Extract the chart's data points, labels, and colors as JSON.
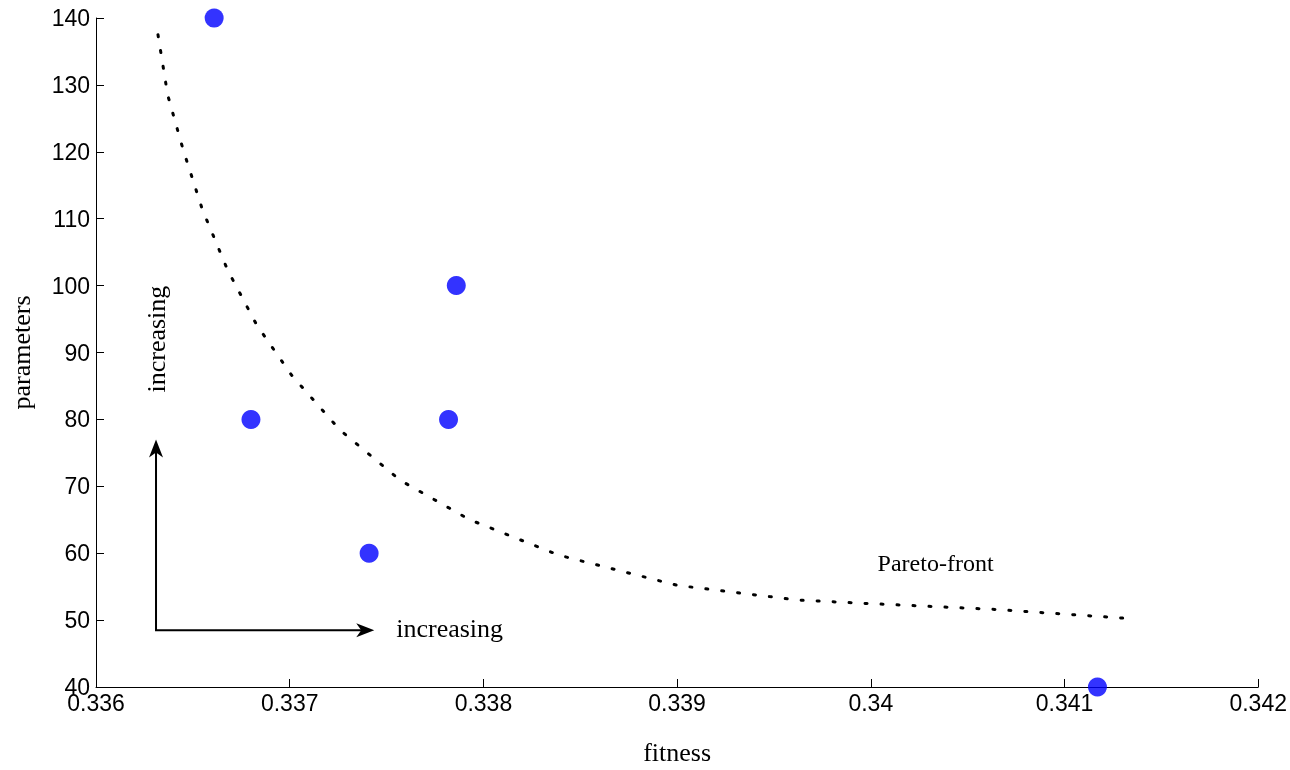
{
  "chart_data": {
    "type": "scatter",
    "xlabel": "fitness",
    "ylabel": "parameters",
    "xlim": [
      0.336,
      0.342
    ],
    "xticks": [
      0.336,
      0.337,
      0.338,
      0.339,
      0.34,
      0.341,
      0.342
    ],
    "ylim": [
      40,
      140
    ],
    "yticks": [
      40,
      50,
      60,
      70,
      80,
      90,
      100,
      110,
      120,
      130,
      140
    ],
    "grid": false,
    "series": [
      {
        "color": "#0000ff",
        "marker": "circle",
        "x": [
          0.33661,
          0.3368,
          0.33741,
          0.33782,
          0.33786,
          0.34117
        ],
        "values": [
          140,
          80,
          60,
          80,
          100,
          40
        ]
      },
      {
        "type": "line",
        "color": "#000000",
        "marker": "none",
        "line_style": "dotted",
        "x": [
          0.33632,
          0.33637,
          0.33645,
          0.33655,
          0.33668,
          0.33683,
          0.33701,
          0.33726,
          0.33757,
          0.33793,
          0.33839,
          0.339,
          0.33962,
          0.33997,
          0.34064,
          0.3413
        ],
        "values": [
          137.5,
          128.5,
          120.3,
          111.3,
          102.3,
          94.1,
          86.6,
          78.4,
          70.9,
          65.0,
          59.7,
          55.2,
          53.0,
          52.5,
          51.6,
          50.3
        ]
      }
    ],
    "annotations": [
      "Pareto-front",
      "increasing",
      "increasing"
    ]
  }
}
